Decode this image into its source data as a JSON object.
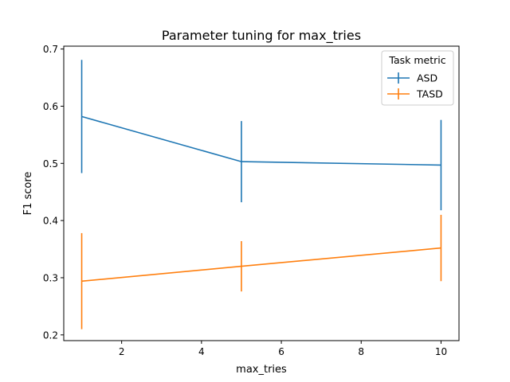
{
  "chart_data": {
    "type": "line",
    "title": "Parameter tuning for max_tries",
    "xlabel": "max_tries",
    "ylabel": "F1 score",
    "xlim": [
      0.55,
      10.45
    ],
    "ylim": [
      0.19,
      0.705
    ],
    "xticks": [
      2,
      4,
      6,
      8,
      10
    ],
    "yticks": [
      0.2,
      0.3,
      0.4,
      0.5,
      0.6,
      0.7
    ],
    "grid": false,
    "legend": {
      "title": "Task metric",
      "placement": "top-right"
    },
    "x": [
      1,
      5,
      10
    ],
    "series": [
      {
        "name": "ASD",
        "color": "#1f77b4",
        "values": [
          0.582,
          0.503,
          0.497
        ],
        "yerr": [
          0.099,
          0.071,
          0.079
        ]
      },
      {
        "name": "TASD",
        "color": "#ff7f0e",
        "values": [
          0.294,
          0.32,
          0.352
        ],
        "yerr": [
          0.084,
          0.044,
          0.058
        ]
      }
    ]
  }
}
